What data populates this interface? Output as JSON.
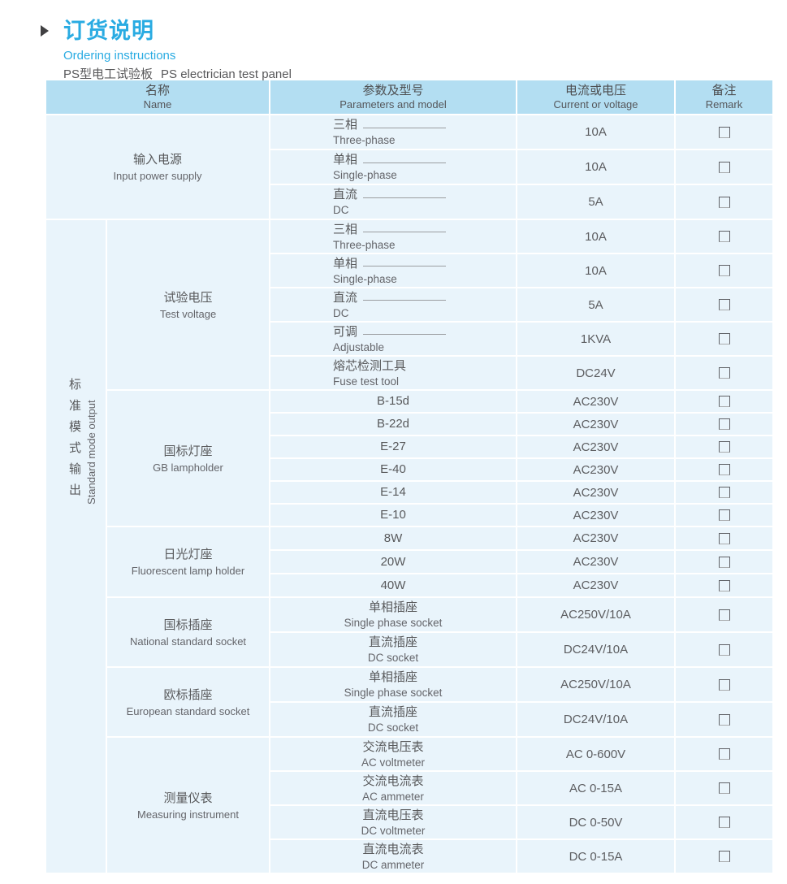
{
  "page": {
    "title_zh": "订货说明",
    "title_en": "Ordering instructions",
    "subtitle_zh": "PS型电工试验板",
    "subtitle_en": "PS electrician test panel"
  },
  "colors": {
    "accent": "#29abe2",
    "header_bg": "#b3def2",
    "cell_bg": "#e9f4fb",
    "text": "#58595b",
    "grid_line": "#ffffff",
    "checkbox_border": "#606267"
  },
  "table": {
    "headers": {
      "name_zh": "名称",
      "name_en": "Name",
      "params_zh": "参数及型号",
      "params_en": "Parameters and model",
      "current_zh": "电流或电压",
      "current_en": "Current or voltage",
      "remark_zh": "备注",
      "remark_en": "Remark"
    },
    "side_label": {
      "zh": "标准模式输出",
      "en": "Standard mode  output"
    },
    "sections": [
      {
        "name_zh": "输入电源",
        "name_en": "Input power supply",
        "rows": [
          {
            "zh": "三相",
            "en": "Three-phase",
            "value": "10A"
          },
          {
            "zh": "单相",
            "en": "Single-phase",
            "value": "10A"
          },
          {
            "zh": "直流",
            "en": "DC",
            "value": "5A"
          }
        ]
      },
      {
        "name_zh": "试验电压",
        "name_en": "Test voltage",
        "rows": [
          {
            "zh": "三相",
            "en": "Three-phase",
            "value": "10A"
          },
          {
            "zh": "单相",
            "en": "Single-phase",
            "value": "10A"
          },
          {
            "zh": "直流",
            "en": "DC",
            "value": "5A"
          },
          {
            "zh": "可调",
            "en": "Adjustable",
            "value": "1KVA"
          },
          {
            "zh": "熔芯检测工具",
            "en": "Fuse test tool",
            "value": "DC24V"
          }
        ]
      },
      {
        "name_zh": "国标灯座",
        "name_en": "GB lampholder",
        "rows": [
          {
            "zh": "B-15d",
            "value": "AC230V"
          },
          {
            "zh": "B-22d",
            "value": "AC230V"
          },
          {
            "zh": "E-27",
            "value": "AC230V"
          },
          {
            "zh": "E-40",
            "value": "AC230V"
          },
          {
            "zh": "E-14",
            "value": "AC230V"
          },
          {
            "zh": "E-10",
            "value": "AC230V"
          }
        ]
      },
      {
        "name_zh": "日光灯座",
        "name_en": "Fluorescent lamp holder",
        "rows": [
          {
            "zh": "8W",
            "value": "AC230V"
          },
          {
            "zh": "20W",
            "value": "AC230V"
          },
          {
            "zh": "40W",
            "value": "AC230V"
          }
        ]
      },
      {
        "name_zh": "国标插座",
        "name_en": "National standard socket",
        "rows": [
          {
            "zh": "单相插座",
            "en": "Single phase socket",
            "value": "AC250V/10A"
          },
          {
            "zh": "直流插座",
            "en": "DC socket",
            "value": "DC24V/10A"
          }
        ]
      },
      {
        "name_zh": "欧标插座",
        "name_en": "European standard socket",
        "rows": [
          {
            "zh": "单相插座",
            "en": "Single phase socket",
            "value": "AC250V/10A"
          },
          {
            "zh": "直流插座",
            "en": "DC socket",
            "value": "DC24V/10A"
          }
        ]
      },
      {
        "name_zh": "测量仪表",
        "name_en": "Measuring instrument",
        "rows": [
          {
            "zh": "交流电压表",
            "en": "AC voltmeter",
            "value": "AC 0-600V"
          },
          {
            "zh": "交流电流表",
            "en": "AC ammeter",
            "value": "AC 0-15A"
          },
          {
            "zh": "直流电压表",
            "en": "DC voltmeter",
            "value": "DC 0-50V"
          },
          {
            "zh": "直流电流表",
            "en": "DC ammeter",
            "value": "DC 0-15A"
          }
        ]
      }
    ]
  }
}
